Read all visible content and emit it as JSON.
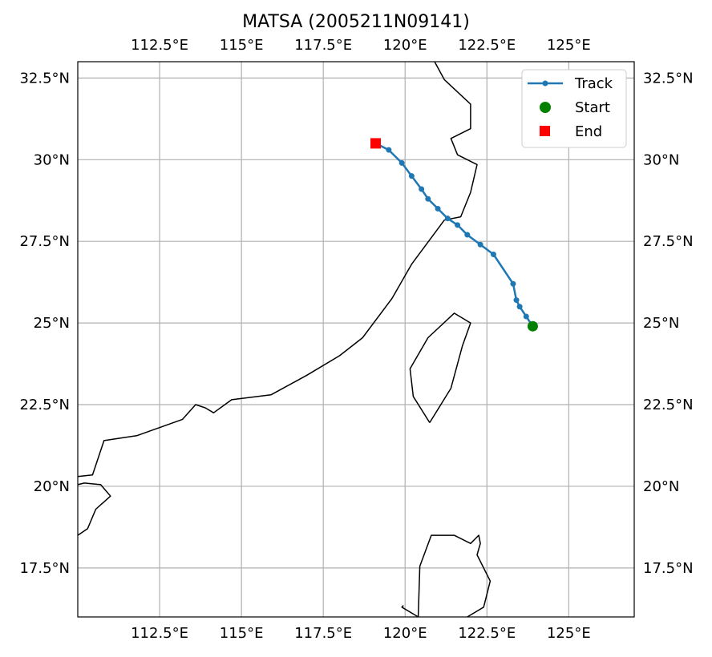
{
  "chart_data": {
    "type": "line",
    "title": "MATSA (2005211N09141)",
    "projection": "map",
    "xlim": [
      110.0,
      127.0
    ],
    "ylim": [
      16.0,
      33.0
    ],
    "grid": true,
    "legend_position": "top-right",
    "x_ticks": [
      {
        "value": 112.5,
        "label": "112.5°E"
      },
      {
        "value": 115.0,
        "label": "115°E"
      },
      {
        "value": 117.5,
        "label": "117.5°E"
      },
      {
        "value": 120.0,
        "label": "120°E"
      },
      {
        "value": 122.5,
        "label": "122.5°E"
      },
      {
        "value": 125.0,
        "label": "125°E"
      }
    ],
    "y_ticks": [
      {
        "value": 17.5,
        "label": "17.5°N"
      },
      {
        "value": 20.0,
        "label": "20°N"
      },
      {
        "value": 22.5,
        "label": "22.5°N"
      },
      {
        "value": 25.0,
        "label": "25°N"
      },
      {
        "value": 27.5,
        "label": "27.5°N"
      },
      {
        "value": 30.0,
        "label": "30°N"
      },
      {
        "value": 32.5,
        "label": "32.5°N"
      }
    ],
    "series": [
      {
        "name": "Track",
        "color": "#1f77b4",
        "marker": "circle",
        "lon": [
          123.9,
          123.7,
          123.5,
          123.4,
          123.3,
          122.7,
          122.3,
          121.9,
          121.6,
          121.3,
          121.0,
          120.7,
          120.5,
          120.2,
          119.9,
          119.5,
          119.1
        ],
        "lat": [
          24.9,
          25.2,
          25.5,
          25.7,
          26.2,
          27.1,
          27.4,
          27.7,
          28.0,
          28.2,
          28.5,
          28.8,
          29.1,
          29.5,
          29.9,
          30.3,
          30.5
        ]
      },
      {
        "name": "Start",
        "color": "#008000",
        "marker": "circle",
        "lon": [
          123.9
        ],
        "lat": [
          24.9
        ]
      },
      {
        "name": "End",
        "color": "#ff0000",
        "marker": "square",
        "lon": [
          119.1
        ],
        "lat": [
          30.5
        ]
      }
    ],
    "coastlines": [
      [
        [
          110.0,
          20.3
        ],
        [
          110.45,
          20.35
        ],
        [
          110.8,
          21.4
        ],
        [
          111.8,
          21.55
        ],
        [
          113.2,
          22.05
        ],
        [
          113.6,
          22.5
        ],
        [
          113.9,
          22.4
        ],
        [
          114.15,
          22.25
        ],
        [
          114.7,
          22.65
        ],
        [
          115.9,
          22.8
        ],
        [
          117.0,
          23.4
        ],
        [
          118.0,
          24.0
        ],
        [
          118.7,
          24.55
        ],
        [
          119.6,
          25.75
        ],
        [
          120.2,
          26.8
        ],
        [
          121.2,
          28.15
        ],
        [
          121.7,
          28.25
        ],
        [
          122.0,
          29.0
        ],
        [
          122.2,
          29.85
        ],
        [
          121.6,
          30.15
        ],
        [
          121.4,
          30.65
        ],
        [
          122.0,
          30.95
        ],
        [
          122.0,
          31.7
        ],
        [
          121.2,
          32.45
        ],
        [
          120.9,
          33.0
        ]
      ],
      [
        [
          120.75,
          21.95
        ],
        [
          120.25,
          22.75
        ],
        [
          120.15,
          23.6
        ],
        [
          120.7,
          24.55
        ],
        [
          121.5,
          25.3
        ],
        [
          122.0,
          25.0
        ],
        [
          121.75,
          24.3
        ],
        [
          121.4,
          23.0
        ],
        [
          120.75,
          21.95
        ]
      ],
      [
        [
          110.0,
          20.05
        ],
        [
          110.2,
          20.1
        ],
        [
          110.7,
          20.05
        ],
        [
          111.0,
          19.7
        ],
        [
          110.55,
          19.3
        ],
        [
          110.3,
          18.7
        ],
        [
          110.0,
          18.5
        ]
      ],
      [
        [
          119.95,
          16.35
        ],
        [
          119.9,
          16.3
        ],
        [
          120.4,
          16.0
        ]
      ],
      [
        [
          120.4,
          16.0
        ],
        [
          120.45,
          17.55
        ],
        [
          120.8,
          18.5
        ],
        [
          121.5,
          18.5
        ],
        [
          122.0,
          18.25
        ],
        [
          122.25,
          18.5
        ],
        [
          122.3,
          18.25
        ],
        [
          122.2,
          17.9
        ],
        [
          122.6,
          17.1
        ],
        [
          122.4,
          16.3
        ],
        [
          121.9,
          16.0
        ]
      ]
    ]
  }
}
